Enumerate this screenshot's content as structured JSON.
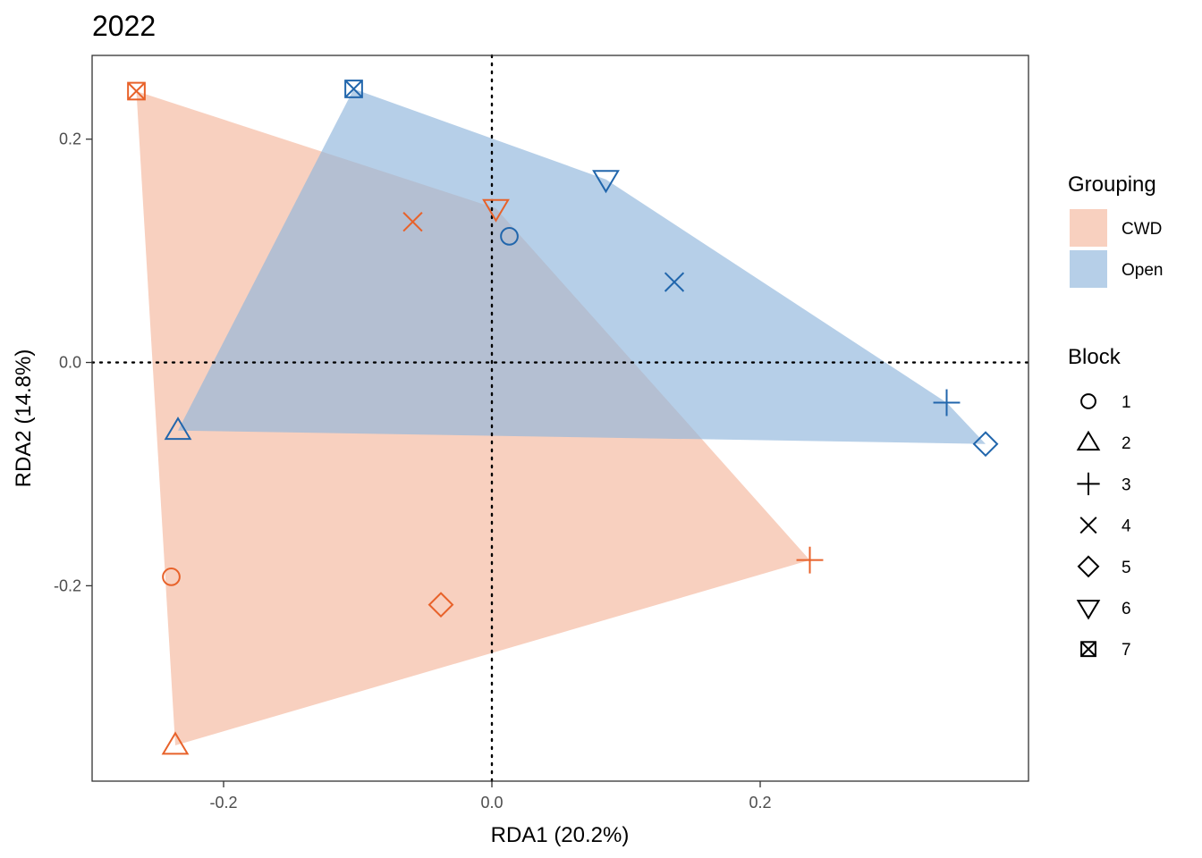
{
  "chart_data": {
    "type": "scatter",
    "title": "2022",
    "xlabel": "RDA1 (20.2%)",
    "ylabel": "RDA2 (14.8%)",
    "xlim": [
      -0.298,
      0.4
    ],
    "ylim": [
      -0.375,
      0.275
    ],
    "x_ticks": [
      -0.2,
      0.0,
      0.2
    ],
    "y_ticks": [
      -0.2,
      0.0,
      0.2
    ],
    "x_tick_labels": [
      "-0.2",
      "0.0",
      "0.2"
    ],
    "y_tick_labels": [
      "-0.2",
      "0.0",
      "0.2"
    ],
    "reference_lines": {
      "x": 0,
      "y": 0,
      "style": "dotted"
    },
    "grid": false,
    "legend_position": "right",
    "grouping_legend": {
      "title": "Grouping",
      "items": [
        {
          "label": "CWD",
          "fill": "#F4B79D",
          "stroke": "#E8622A",
          "hull_opacity": 0.65
        },
        {
          "label": "Open",
          "fill": "#8FB5DC",
          "stroke": "#2166AC",
          "hull_opacity": 0.65
        }
      ]
    },
    "block_legend": {
      "title": "Block",
      "items": [
        {
          "label": "1",
          "shape": "circle"
        },
        {
          "label": "2",
          "shape": "triangle"
        },
        {
          "label": "3",
          "shape": "plus"
        },
        {
          "label": "4",
          "shape": "cross"
        },
        {
          "label": "5",
          "shape": "diamond"
        },
        {
          "label": "6",
          "shape": "triangle-down"
        },
        {
          "label": "7",
          "shape": "square-cross"
        }
      ]
    },
    "series": [
      {
        "name": "CWD",
        "points": [
          {
            "block": "1",
            "x": -0.239,
            "y": -0.192
          },
          {
            "block": "2",
            "x": -0.236,
            "y": -0.343
          },
          {
            "block": "3",
            "x": 0.237,
            "y": -0.177
          },
          {
            "block": "4",
            "x": -0.059,
            "y": 0.126
          },
          {
            "block": "5",
            "x": -0.038,
            "y": -0.217
          },
          {
            "block": "6",
            "x": 0.003,
            "y": 0.138
          },
          {
            "block": "7",
            "x": -0.265,
            "y": 0.243
          }
        ]
      },
      {
        "name": "Open",
        "points": [
          {
            "block": "1",
            "x": 0.013,
            "y": 0.113
          },
          {
            "block": "2",
            "x": -0.234,
            "y": -0.061
          },
          {
            "block": "3",
            "x": 0.339,
            "y": -0.036
          },
          {
            "block": "4",
            "x": 0.136,
            "y": 0.072
          },
          {
            "block": "5",
            "x": 0.368,
            "y": -0.073
          },
          {
            "block": "6",
            "x": 0.085,
            "y": 0.164
          },
          {
            "block": "7",
            "x": -0.103,
            "y": 0.245
          }
        ]
      }
    ]
  }
}
